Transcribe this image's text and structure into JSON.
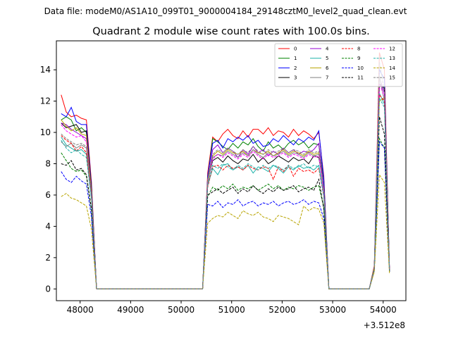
{
  "figure": {
    "suptitle": "Data file: modeM0/AS1A10_099T01_9000004184_29148cztM0_level2_quad_clean.evt"
  },
  "chart_data": {
    "type": "line",
    "title": "Quadrant 2 module wise count rates with 100.0s bins.",
    "xlabel": "",
    "ylabel": "",
    "x_offset_label": "+3.512e8",
    "xlim": [
      47530,
      54450
    ],
    "ylim": [
      -0.75,
      15.85
    ],
    "x_ticks": [
      48000,
      49000,
      50000,
      51000,
      52000,
      53000,
      54000
    ],
    "y_ticks": [
      0,
      2,
      4,
      6,
      8,
      10,
      12,
      14
    ],
    "grid": false,
    "legend": {
      "placement": "top-right",
      "columns": 4
    },
    "x": [
      47625,
      47725,
      47825,
      47925,
      48025,
      48125,
      48225,
      48325,
      48425,
      48525,
      48625,
      48725,
      48825,
      48925,
      49025,
      49125,
      49225,
      49325,
      49425,
      49525,
      49625,
      49725,
      49825,
      49925,
      50025,
      50125,
      50225,
      50325,
      50425,
      50525,
      50625,
      50725,
      50825,
      50925,
      51025,
      51125,
      51225,
      51325,
      51425,
      51525,
      51625,
      51725,
      51825,
      51925,
      52025,
      52125,
      52225,
      52325,
      52425,
      52525,
      52625,
      52725,
      52825,
      52925,
      53025,
      53125,
      53225,
      53325,
      53425,
      53525,
      53625,
      53725,
      53825,
      53925,
      54025,
      54125
    ],
    "series": [
      {
        "name": "0",
        "color": "#ff0000",
        "dash": false,
        "values": [
          12.4,
          11.3,
          11.0,
          11.1,
          10.9,
          10.8,
          6.8,
          0,
          0,
          0,
          0,
          0,
          0,
          0,
          0,
          0,
          0,
          0,
          0,
          0,
          0,
          0,
          0,
          0,
          0,
          0,
          0,
          0,
          0,
          7.4,
          9.7,
          9.4,
          9.9,
          10.2,
          9.8,
          9.6,
          10.1,
          9.7,
          10.2,
          10.2,
          9.9,
          10.3,
          9.8,
          10.1,
          10.0,
          9.7,
          10.2,
          9.8,
          10.1,
          9.9,
          9.6,
          10.0,
          7.2,
          0,
          0,
          0,
          0,
          0,
          0,
          0,
          0,
          0,
          1.5,
          15.1,
          14.0,
          1.3
        ]
      },
      {
        "name": "1",
        "color": "#008000",
        "dash": false,
        "values": [
          10.8,
          11.0,
          10.8,
          10.1,
          10.3,
          10.0,
          6.5,
          0,
          0,
          0,
          0,
          0,
          0,
          0,
          0,
          0,
          0,
          0,
          0,
          0,
          0,
          0,
          0,
          0,
          0,
          0,
          0,
          0,
          0,
          7.1,
          9.6,
          9.4,
          9.1,
          8.9,
          9.3,
          9.0,
          9.4,
          9.2,
          9.6,
          9.1,
          8.8,
          9.4,
          9.0,
          9.2,
          8.9,
          9.3,
          9.5,
          9.2,
          9.4,
          9.0,
          9.3,
          9.2,
          6.9,
          0,
          0,
          0,
          0,
          0,
          0,
          0,
          0,
          0,
          1.4,
          13.0,
          12.9,
          1.3
        ]
      },
      {
        "name": "2",
        "color": "#0000ff",
        "dash": false,
        "values": [
          11.2,
          11.0,
          11.6,
          10.7,
          10.5,
          10.5,
          6.6,
          0,
          0,
          0,
          0,
          0,
          0,
          0,
          0,
          0,
          0,
          0,
          0,
          0,
          0,
          0,
          0,
          0,
          0,
          0,
          0,
          0,
          0,
          7.2,
          9.3,
          9.5,
          9.0,
          9.6,
          9.4,
          9.7,
          9.5,
          9.8,
          9.3,
          9.5,
          9.1,
          9.2,
          9.6,
          9.4,
          9.8,
          9.5,
          9.2,
          9.6,
          9.4,
          9.7,
          9.5,
          10.1,
          7.0,
          0,
          0,
          0,
          0,
          0,
          0,
          0,
          0,
          0,
          1.4,
          14.0,
          13.4,
          1.3
        ]
      },
      {
        "name": "3",
        "color": "#000000",
        "dash": false,
        "values": [
          10.6,
          10.3,
          10.4,
          10.5,
          10.0,
          10.1,
          6.4,
          0,
          0,
          0,
          0,
          0,
          0,
          0,
          0,
          0,
          0,
          0,
          0,
          0,
          0,
          0,
          0,
          0,
          0,
          0,
          0,
          0,
          0,
          6.9,
          8.2,
          8.4,
          8.1,
          8.5,
          8.2,
          8.0,
          8.3,
          8.2,
          8.6,
          8.1,
          8.4,
          8.0,
          8.2,
          8.5,
          8.3,
          8.1,
          8.4,
          8.2,
          8.3,
          8.0,
          8.5,
          8.4,
          6.5,
          0,
          0,
          0,
          0,
          0,
          0,
          0,
          0,
          0,
          1.4,
          13.1,
          12.8,
          1.2
        ]
      },
      {
        "name": "4",
        "color": "#9400d3",
        "dash": false,
        "values": [
          10.6,
          10.5,
          10.2,
          10.0,
          9.8,
          9.6,
          6.1,
          0,
          0,
          0,
          0,
          0,
          0,
          0,
          0,
          0,
          0,
          0,
          0,
          0,
          0,
          0,
          0,
          0,
          0,
          0,
          0,
          0,
          0,
          6.8,
          8.9,
          9.2,
          8.7,
          9.0,
          8.8,
          8.4,
          8.9,
          8.6,
          9.1,
          8.7,
          8.9,
          8.5,
          8.8,
          8.6,
          9.0,
          8.7,
          8.9,
          8.6,
          8.8,
          8.7,
          8.9,
          9.3,
          6.4,
          0,
          0,
          0,
          0,
          0,
          0,
          0,
          0,
          0,
          1.4,
          13.5,
          12.5,
          1.3
        ]
      },
      {
        "name": "5",
        "color": "#20b2aa",
        "dash": false,
        "values": [
          9.7,
          9.2,
          9.0,
          8.8,
          8.9,
          8.6,
          5.8,
          0,
          0,
          0,
          0,
          0,
          0,
          0,
          0,
          0,
          0,
          0,
          0,
          0,
          0,
          0,
          0,
          0,
          0,
          0,
          0,
          0,
          0,
          6.6,
          7.7,
          7.3,
          7.9,
          8.0,
          7.6,
          7.8,
          7.6,
          7.9,
          7.4,
          7.8,
          7.7,
          7.5,
          7.9,
          7.7,
          7.4,
          7.8,
          7.6,
          7.9,
          7.7,
          7.8,
          7.6,
          7.9,
          6.0,
          0,
          0,
          0,
          0,
          0,
          0,
          0,
          0,
          0,
          1.3,
          12.5,
          11.8,
          1.2
        ]
      },
      {
        "name": "6",
        "color": "#b8a400",
        "dash": false,
        "values": [
          10.8,
          10.4,
          10.1,
          10.3,
          9.9,
          9.8,
          6.2,
          0,
          0,
          0,
          0,
          0,
          0,
          0,
          0,
          0,
          0,
          0,
          0,
          0,
          0,
          0,
          0,
          0,
          0,
          0,
          0,
          0,
          0,
          7.0,
          8.5,
          8.8,
          8.6,
          8.9,
          8.7,
          8.6,
          8.8,
          8.5,
          8.9,
          8.7,
          8.6,
          8.8,
          8.5,
          8.7,
          8.9,
          8.6,
          8.8,
          8.7,
          8.5,
          8.8,
          8.6,
          8.7,
          6.3,
          0,
          0,
          0,
          0,
          0,
          0,
          0,
          0,
          0,
          1.4,
          12.0,
          12.2,
          1.2
        ]
      },
      {
        "name": "7",
        "color": "#808080",
        "dash": false,
        "values": [
          9.4,
          9.1,
          9.3,
          9.0,
          9.2,
          9.0,
          6.0,
          0,
          0,
          0,
          0,
          0,
          0,
          0,
          0,
          0,
          0,
          0,
          0,
          0,
          0,
          0,
          0,
          0,
          0,
          0,
          0,
          0,
          0,
          6.7,
          8.4,
          8.6,
          8.5,
          8.8,
          8.6,
          8.4,
          8.7,
          8.5,
          8.9,
          8.6,
          8.4,
          8.7,
          8.5,
          8.6,
          8.8,
          8.5,
          8.7,
          8.6,
          8.4,
          8.7,
          8.5,
          8.6,
          6.2,
          0,
          0,
          0,
          0,
          0,
          0,
          0,
          0,
          0,
          1.3,
          13.6,
          12.0,
          1.2
        ]
      },
      {
        "name": "8",
        "color": "#ff0000",
        "dash": true,
        "values": [
          9.8,
          9.5,
          9.3,
          8.8,
          9.1,
          8.7,
          5.9,
          0,
          0,
          0,
          0,
          0,
          0,
          0,
          0,
          0,
          0,
          0,
          0,
          0,
          0,
          0,
          0,
          0,
          0,
          0,
          0,
          0,
          0,
          6.5,
          7.8,
          7.9,
          7.6,
          7.9,
          7.7,
          7.8,
          7.6,
          7.9,
          7.7,
          7.6,
          7.8,
          7.7,
          7.0,
          7.8,
          7.5,
          7.9,
          7.2,
          7.7,
          7.5,
          7.6,
          7.4,
          7.7,
          5.9,
          0,
          0,
          0,
          0,
          0,
          0,
          0,
          0,
          0,
          1.3,
          12.4,
          12.0,
          1.2
        ]
      },
      {
        "name": "9",
        "color": "#008000",
        "dash": true,
        "values": [
          8.7,
          8.2,
          7.7,
          7.5,
          7.6,
          7.2,
          5.0,
          0,
          0,
          0,
          0,
          0,
          0,
          0,
          0,
          0,
          0,
          0,
          0,
          0,
          0,
          0,
          0,
          0,
          0,
          0,
          0,
          0,
          0,
          5.9,
          6.5,
          6.3,
          6.6,
          6.4,
          6.7,
          6.3,
          6.5,
          6.4,
          6.6,
          6.3,
          6.5,
          6.7,
          6.4,
          6.6,
          6.3,
          6.5,
          6.4,
          6.6,
          6.5,
          6.3,
          6.5,
          6.6,
          5.2,
          0,
          0,
          0,
          0,
          0,
          0,
          0,
          0,
          0,
          1.2,
          9.6,
          9.0,
          1.1
        ]
      },
      {
        "name": "10",
        "color": "#0000ff",
        "dash": true,
        "values": [
          7.5,
          7.0,
          6.8,
          7.2,
          6.9,
          6.7,
          4.6,
          0,
          0,
          0,
          0,
          0,
          0,
          0,
          0,
          0,
          0,
          0,
          0,
          0,
          0,
          0,
          0,
          0,
          0,
          0,
          0,
          0,
          0,
          5.4,
          5.3,
          5.6,
          5.2,
          5.5,
          5.4,
          5.7,
          5.3,
          5.5,
          5.6,
          5.3,
          5.5,
          5.4,
          5.6,
          5.3,
          5.5,
          5.6,
          5.4,
          5.5,
          5.7,
          5.4,
          5.6,
          5.5,
          4.5,
          0,
          0,
          0,
          0,
          0,
          0,
          0,
          0,
          0,
          1.2,
          9.4,
          9.0,
          1.1
        ]
      },
      {
        "name": "11",
        "color": "#000000",
        "dash": true,
        "values": [
          8.0,
          7.9,
          8.2,
          7.6,
          7.7,
          7.3,
          5.1,
          0,
          0,
          0,
          0,
          0,
          0,
          0,
          0,
          0,
          0,
          0,
          0,
          0,
          0,
          0,
          0,
          0,
          0,
          0,
          0,
          0,
          0,
          6.0,
          6.2,
          6.4,
          6.1,
          6.3,
          6.5,
          6.1,
          6.4,
          6.2,
          6.6,
          6.3,
          6.1,
          6.4,
          6.2,
          6.5,
          6.3,
          6.4,
          6.6,
          6.2,
          6.4,
          6.5,
          6.3,
          7.0,
          5.1,
          0,
          0,
          0,
          0,
          0,
          0,
          0,
          0,
          0,
          1.2,
          11.0,
          9.9,
          1.1
        ]
      },
      {
        "name": "12",
        "color": "#ff00ff",
        "dash": true,
        "values": [
          10.5,
          10.1,
          9.9,
          9.7,
          9.8,
          9.4,
          6.0,
          0,
          0,
          0,
          0,
          0,
          0,
          0,
          0,
          0,
          0,
          0,
          0,
          0,
          0,
          0,
          0,
          0,
          0,
          0,
          0,
          0,
          0,
          6.9,
          8.3,
          8.6,
          8.4,
          8.7,
          8.5,
          8.3,
          8.6,
          8.4,
          8.8,
          8.5,
          8.3,
          8.6,
          8.4,
          8.5,
          8.7,
          8.4,
          8.6,
          8.5,
          8.3,
          8.6,
          8.4,
          8.5,
          6.1,
          0,
          0,
          0,
          0,
          0,
          0,
          0,
          0,
          0,
          1.3,
          13.1,
          12.3,
          1.2
        ]
      },
      {
        "name": "13",
        "color": "#20b2aa",
        "dash": true,
        "values": [
          9.5,
          9.0,
          8.7,
          8.9,
          8.6,
          8.4,
          5.7,
          0,
          0,
          0,
          0,
          0,
          0,
          0,
          0,
          0,
          0,
          0,
          0,
          0,
          0,
          0,
          0,
          0,
          0,
          0,
          0,
          0,
          0,
          6.6,
          7.9,
          7.7,
          8.0,
          7.8,
          7.6,
          7.9,
          7.7,
          8.0,
          7.8,
          7.6,
          7.9,
          7.7,
          7.9,
          7.8,
          7.6,
          7.9,
          7.7,
          7.8,
          8.0,
          7.7,
          7.9,
          7.8,
          5.9,
          0,
          0,
          0,
          0,
          0,
          0,
          0,
          0,
          0,
          1.3,
          12.2,
          11.6,
          1.2
        ]
      },
      {
        "name": "14",
        "color": "#b8a400",
        "dash": true,
        "values": [
          5.9,
          6.1,
          5.8,
          5.7,
          5.5,
          5.3,
          3.8,
          0,
          0,
          0,
          0,
          0,
          0,
          0,
          0,
          0,
          0,
          0,
          0,
          0,
          0,
          0,
          0,
          0,
          0,
          0,
          0,
          0,
          0,
          4.2,
          4.5,
          4.7,
          4.6,
          4.9,
          4.7,
          4.5,
          5.0,
          4.8,
          4.7,
          4.9,
          4.6,
          4.5,
          4.3,
          4.7,
          4.6,
          4.5,
          4.3,
          4.1,
          5.3,
          5.0,
          5.2,
          5.1,
          4.2,
          0,
          0,
          0,
          0,
          0,
          0,
          0,
          0,
          0,
          1.1,
          7.3,
          6.8,
          1.0
        ]
      },
      {
        "name": "15",
        "color": "#808080",
        "dash": true,
        "values": [
          9.9,
          9.6,
          9.4,
          9.2,
          9.3,
          9.1,
          6.0,
          0,
          0,
          0,
          0,
          0,
          0,
          0,
          0,
          0,
          0,
          0,
          0,
          0,
          0,
          0,
          0,
          0,
          0,
          0,
          0,
          0,
          0,
          6.8,
          8.6,
          8.9,
          8.7,
          9.0,
          8.8,
          8.6,
          8.9,
          8.7,
          9.1,
          8.8,
          8.6,
          8.9,
          8.7,
          8.8,
          9.0,
          8.7,
          8.9,
          8.8,
          8.6,
          8.9,
          8.7,
          8.8,
          6.3,
          0,
          0,
          0,
          0,
          0,
          0,
          0,
          0,
          0,
          1.3,
          14.5,
          12.6,
          1.2
        ]
      }
    ]
  }
}
